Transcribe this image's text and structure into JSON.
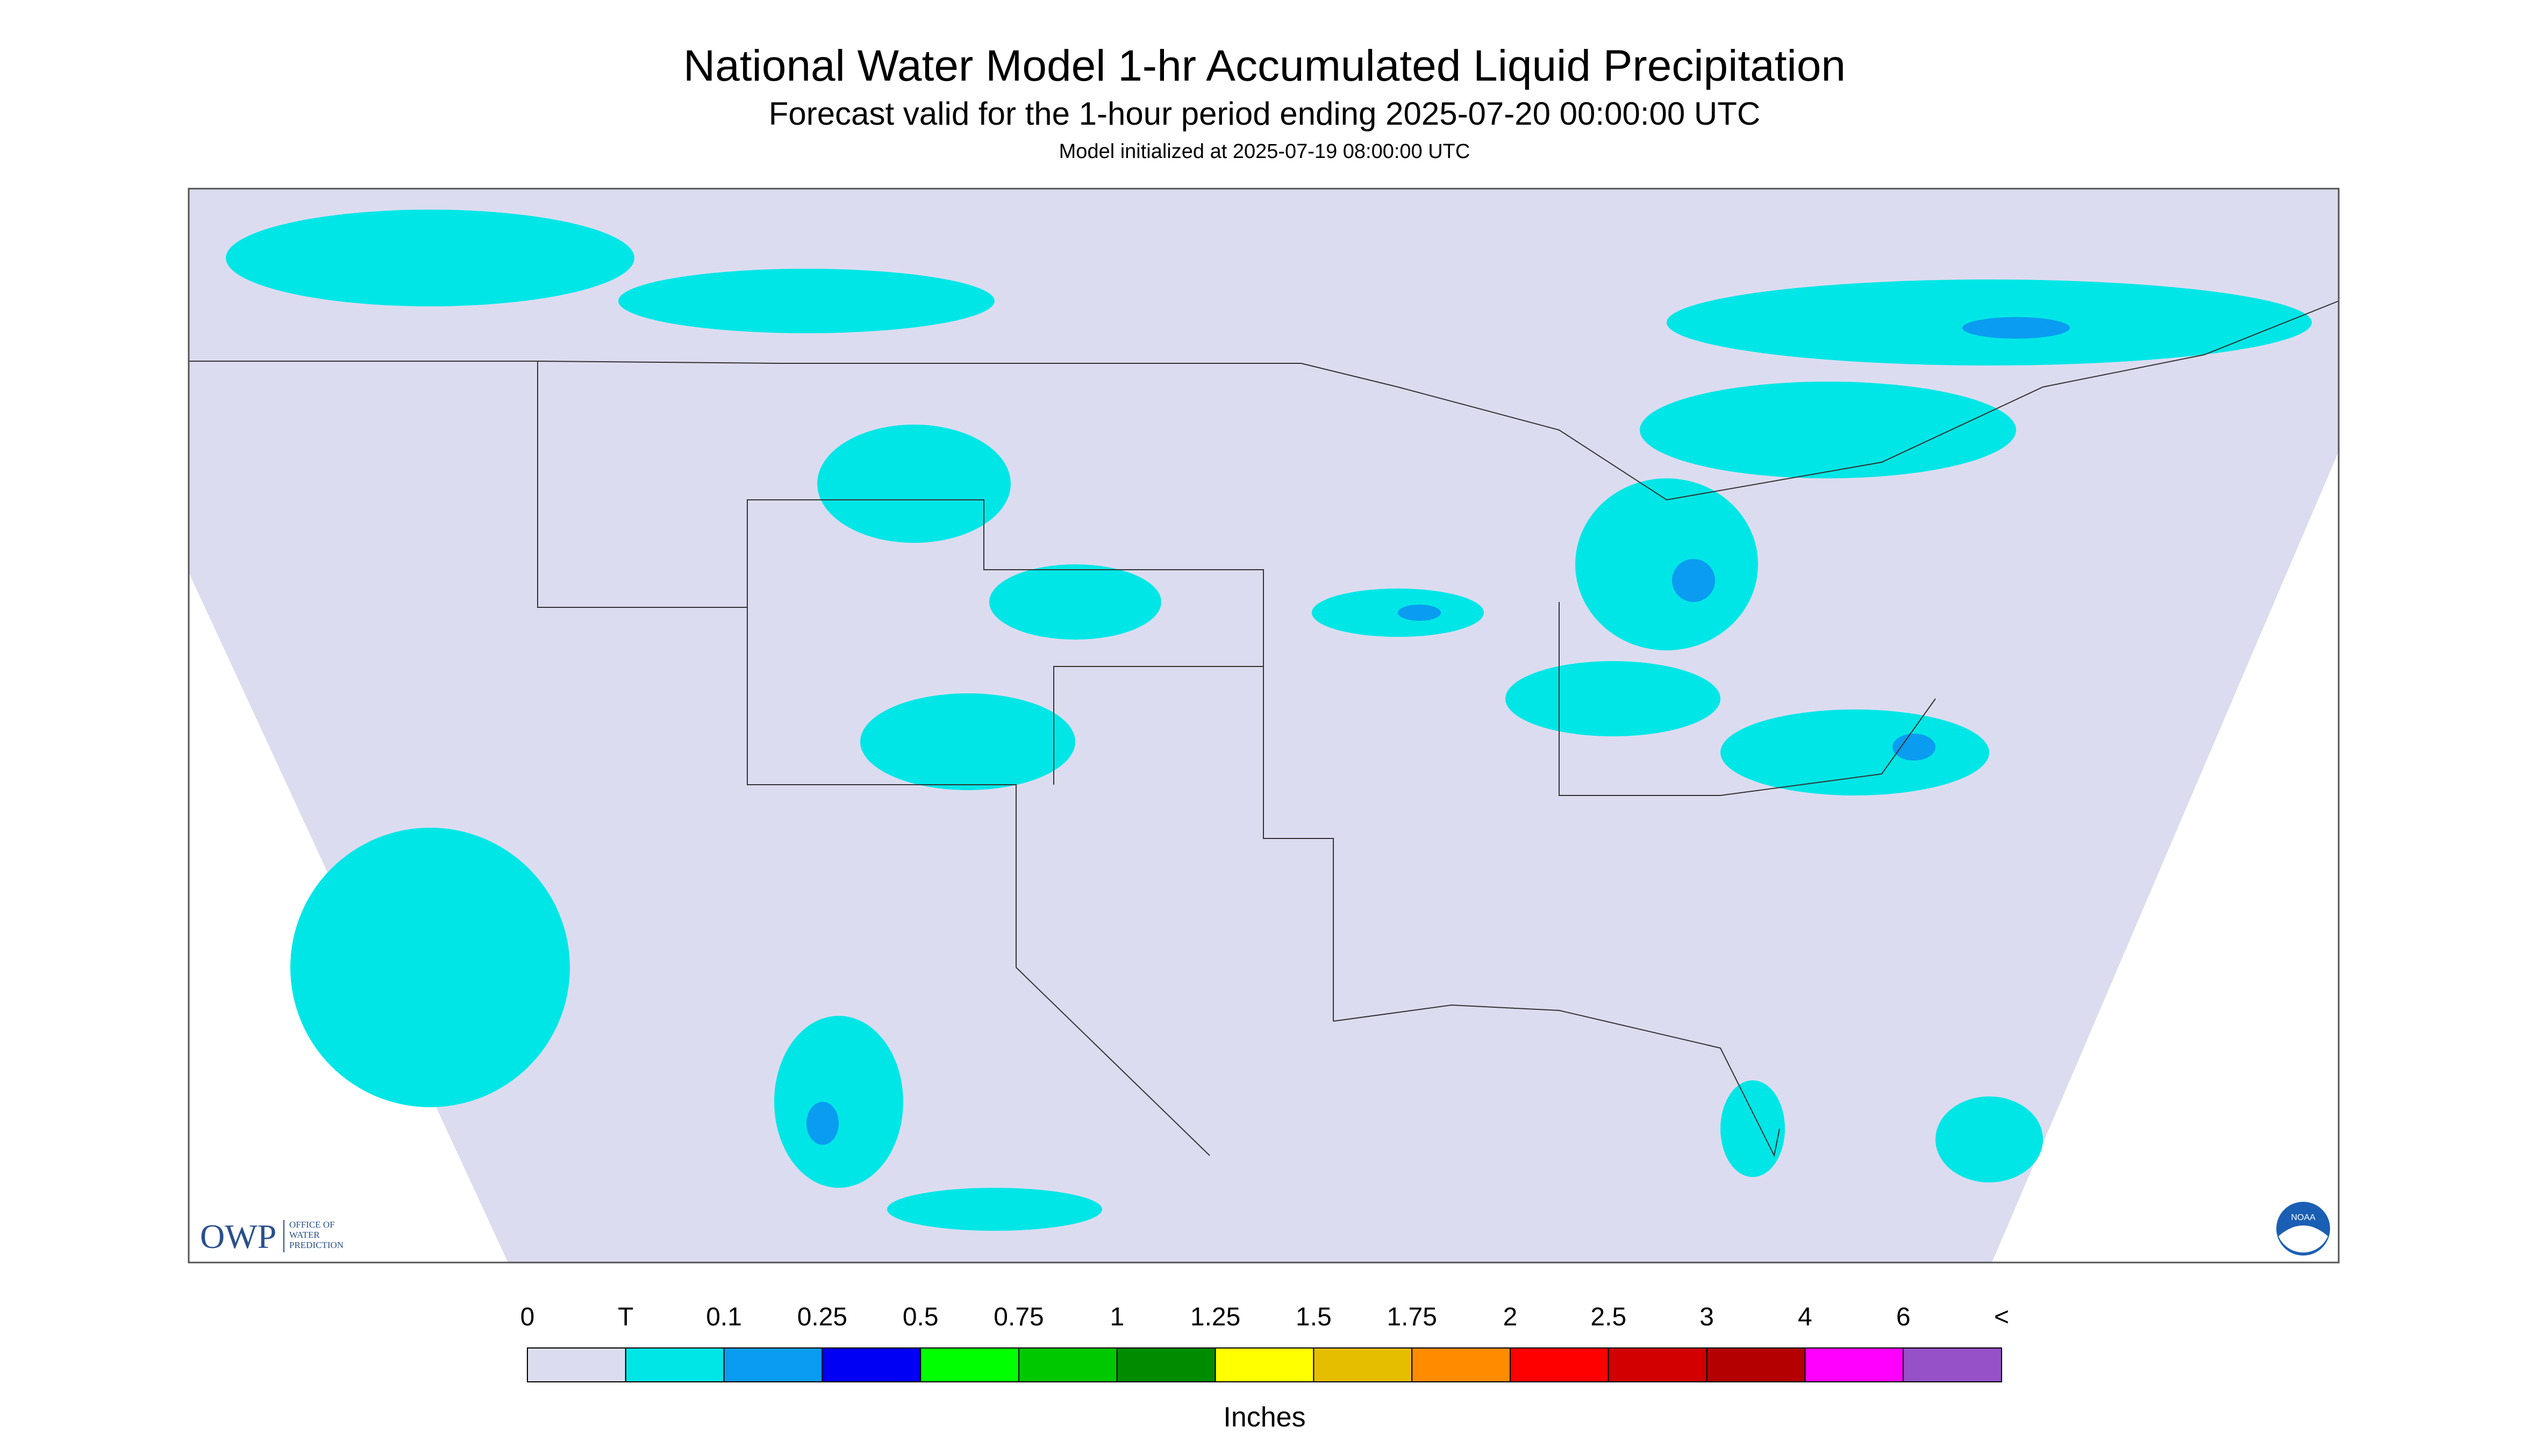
{
  "header": {
    "title": "National Water Model 1-hr Accumulated Liquid Precipitation",
    "subtitle": "Forecast valid for the 1-hour period ending 2025-07-20 00:00:00 UTC",
    "initialized": "Model initialized at 2025-07-19 08:00:00 UTC"
  },
  "legend": {
    "labels": [
      "0",
      "T",
      "0.1",
      "0.25",
      "0.5",
      "0.75",
      "1",
      "1.25",
      "1.5",
      "1.75",
      "2",
      "2.5",
      "3",
      "4",
      "6",
      "<"
    ],
    "colors": [
      "#dcdcf0",
      "#00e6e6",
      "#0a9cf0",
      "#0000f5",
      "#00ff00",
      "#00c800",
      "#008c00",
      "#ffff00",
      "#e6be00",
      "#ff8c00",
      "#ff0000",
      "#d20000",
      "#b40000",
      "#ff00ff",
      "#9650c8"
    ],
    "unit": "Inches"
  },
  "logo": {
    "abbrev": "OWP",
    "lines": [
      "OFFICE OF",
      "WATER",
      "PREDICTION"
    ]
  },
  "badge": "NOAA"
}
